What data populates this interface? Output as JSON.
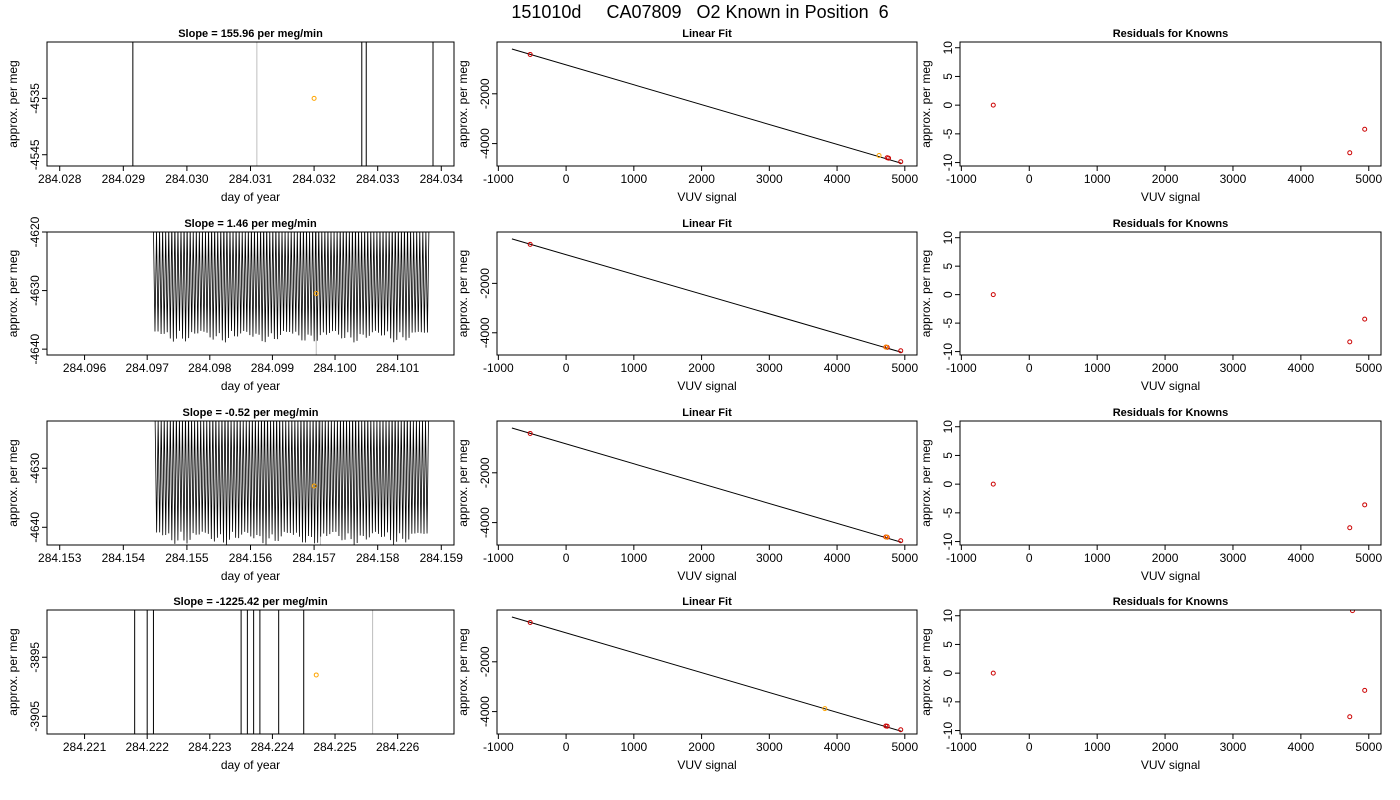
{
  "page_title": "151010d     CA07809   O2 Known in Position  6",
  "colors": {
    "trace": "#000000",
    "gray_marker": "#bebebe",
    "orange_point": "#ffa500",
    "red_point": "#cc0000"
  },
  "chart_data": [
    {
      "type": "line",
      "title": "Slope =  155.96  per meg/min",
      "xlabel": "day of year",
      "ylabel": "approx. per meg",
      "xlim": [
        284.0278,
        284.0342
      ],
      "ylim": [
        -4547,
        -4525
      ],
      "xticks": [
        284.028,
        284.029,
        284.03,
        284.031,
        284.032,
        284.033,
        284.034
      ],
      "xtick_labels": [
        "284.028",
        "284.029",
        "284.030",
        "284.031",
        "284.032",
        "284.033",
        "284.034"
      ],
      "yticks": [
        -4535,
        -4545
      ],
      "ytick_labels": [
        "-4535",
        "-4545"
      ],
      "vertical_lines": [
        284.02915,
        284.03275,
        284.03282,
        284.03387
      ],
      "gray_line": 284.0311,
      "highlight_point": {
        "x": 284.032,
        "y": -4535
      }
    },
    {
      "type": "scatter",
      "title": "Linear Fit",
      "xlabel": "VUV signal",
      "ylabel": "approx. per meg",
      "xlim": [
        -1020,
        5180
      ],
      "ylim": [
        -4900,
        80
      ],
      "xticks": [
        -1000,
        0,
        1000,
        2000,
        3000,
        4000,
        5000
      ],
      "xtick_labels": [
        "-1000",
        "0",
        "1000",
        "2000",
        "3000",
        "4000",
        "5000"
      ],
      "yticks": [
        -2000,
        -4000
      ],
      "ytick_labels": [
        "-2000",
        "-4000"
      ],
      "fit_line": {
        "x": [
          -800,
          4950
        ],
        "y": [
          -200,
          -4790
        ]
      },
      "points": [
        {
          "x": -530,
          "y": -420
        },
        {
          "x": 4740,
          "y": -4570
        },
        {
          "x": 4760,
          "y": -4585
        },
        {
          "x": 4940,
          "y": -4730
        }
      ],
      "highlight_point": {
        "x": 4620,
        "y": -4480
      }
    },
    {
      "type": "scatter",
      "title": "Residuals for Knowns",
      "xlabel": "VUV signal",
      "ylabel": "approx. per meg",
      "xlim": [
        -1020,
        5180
      ],
      "ylim": [
        -10.6,
        11
      ],
      "xticks": [
        -1000,
        0,
        1000,
        2000,
        3000,
        4000,
        5000
      ],
      "xtick_labels": [
        "-1000",
        "0",
        "1000",
        "2000",
        "3000",
        "4000",
        "5000"
      ],
      "yticks": [
        10,
        5,
        0,
        -5,
        -10
      ],
      "ytick_labels": [
        "10",
        "5",
        "0",
        "-5",
        "-10"
      ],
      "points": [
        {
          "x": -530,
          "y": 0
        },
        {
          "x": 4720,
          "y": -8.3
        },
        {
          "x": 4940,
          "y": -4.2
        }
      ]
    },
    {
      "type": "line",
      "title": "Slope =  1.46  per meg/min",
      "xlabel": "day of year",
      "ylabel": "approx. per meg",
      "xlim": [
        284.0954,
        284.1019
      ],
      "ylim": [
        -4641,
        -4620
      ],
      "xticks": [
        284.096,
        284.097,
        284.098,
        284.099,
        284.1,
        284.101
      ],
      "xtick_labels": [
        "284.096",
        "284.097",
        "284.098",
        "284.099",
        "284.100",
        "284.101"
      ],
      "yticks": [
        -4620,
        -4630,
        -4640
      ],
      "ytick_labels": [
        "-4620",
        "-4630",
        "-4640"
      ],
      "oscillation": {
        "x_start": 284.0971,
        "x_end": 284.1015,
        "high": -4620,
        "low": -4638,
        "cycles": 90
      },
      "gray_line": 284.0997,
      "highlight_point": {
        "x": 284.0997,
        "y": -4630.5
      }
    },
    {
      "type": "scatter",
      "title": "Linear Fit",
      "xlabel": "VUV signal",
      "ylabel": "approx. per meg",
      "xlim": [
        -1020,
        5180
      ],
      "ylim": [
        -4900,
        80
      ],
      "xticks": [
        -1000,
        0,
        1000,
        2000,
        3000,
        4000,
        5000
      ],
      "xtick_labels": [
        "-1000",
        "0",
        "1000",
        "2000",
        "3000",
        "4000",
        "5000"
      ],
      "yticks": [
        -2000,
        -4000
      ],
      "ytick_labels": [
        "-2000",
        "-4000"
      ],
      "fit_line": {
        "x": [
          -800,
          4950
        ],
        "y": [
          -200,
          -4790
        ]
      },
      "points": [
        {
          "x": -530,
          "y": -420
        },
        {
          "x": 4720,
          "y": -4580
        },
        {
          "x": 4740,
          "y": -4590
        },
        {
          "x": 4940,
          "y": -4730
        }
      ],
      "highlight_point": {
        "x": 4725,
        "y": -4582
      }
    },
    {
      "type": "scatter",
      "title": "Residuals for Knowns",
      "xlabel": "VUV signal",
      "ylabel": "approx. per meg",
      "xlim": [
        -1020,
        5180
      ],
      "ylim": [
        -10.6,
        11
      ],
      "xticks": [
        -1000,
        0,
        1000,
        2000,
        3000,
        4000,
        5000
      ],
      "xtick_labels": [
        "-1000",
        "0",
        "1000",
        "2000",
        "3000",
        "4000",
        "5000"
      ],
      "yticks": [
        10,
        5,
        0,
        -5,
        -10
      ],
      "ytick_labels": [
        "10",
        "5",
        "0",
        "-5",
        "-10"
      ],
      "points": [
        {
          "x": -530,
          "y": 0
        },
        {
          "x": 4720,
          "y": -8.3
        },
        {
          "x": 4940,
          "y": -4.3
        }
      ]
    },
    {
      "type": "line",
      "title": "Slope =  -0.52  per meg/min",
      "xlabel": "day of year",
      "ylabel": "approx. per meg",
      "xlim": [
        284.1528,
        284.1592
      ],
      "ylim": [
        -4643,
        -4622
      ],
      "xticks": [
        284.153,
        284.154,
        284.155,
        284.156,
        284.157,
        284.158,
        284.159
      ],
      "xtick_labels": [
        "284.153",
        "284.154",
        "284.155",
        "284.156",
        "284.157",
        "284.158",
        "284.159"
      ],
      "yticks": [
        -4630,
        -4640
      ],
      "ytick_labels": [
        "-4630",
        "-4640"
      ],
      "oscillation": {
        "x_start": 284.1545,
        "x_end": 284.1588,
        "high": -4622,
        "low": -4642,
        "cycles": 90
      },
      "gray_line": 284.1571,
      "highlight_point": {
        "x": 284.157,
        "y": -4633
      }
    },
    {
      "type": "scatter",
      "title": "Linear Fit",
      "xlabel": "VUV signal",
      "ylabel": "approx. per meg",
      "xlim": [
        -1020,
        5180
      ],
      "ylim": [
        -4900,
        80
      ],
      "xticks": [
        -1000,
        0,
        1000,
        2000,
        3000,
        4000,
        5000
      ],
      "xtick_labels": [
        "-1000",
        "0",
        "1000",
        "2000",
        "3000",
        "4000",
        "5000"
      ],
      "yticks": [
        -2000,
        -4000
      ],
      "ytick_labels": [
        "-2000",
        "-4000"
      ],
      "fit_line": {
        "x": [
          -800,
          4950
        ],
        "y": [
          -200,
          -4790
        ]
      },
      "points": [
        {
          "x": -530,
          "y": -420
        },
        {
          "x": 4720,
          "y": -4580
        },
        {
          "x": 4740,
          "y": -4590
        },
        {
          "x": 4940,
          "y": -4730
        }
      ],
      "highlight_point": {
        "x": 4730,
        "y": -4585
      }
    },
    {
      "type": "scatter",
      "title": "Residuals for Knowns",
      "xlabel": "VUV signal",
      "ylabel": "approx. per meg",
      "xlim": [
        -1020,
        5180
      ],
      "ylim": [
        -10.6,
        11
      ],
      "xticks": [
        -1000,
        0,
        1000,
        2000,
        3000,
        4000,
        5000
      ],
      "xtick_labels": [
        "-1000",
        "0",
        "1000",
        "2000",
        "3000",
        "4000",
        "5000"
      ],
      "yticks": [
        10,
        5,
        0,
        -5,
        -10
      ],
      "ytick_labels": [
        "10",
        "5",
        "0",
        "-5",
        "-10"
      ],
      "points": [
        {
          "x": -530,
          "y": 0
        },
        {
          "x": 4720,
          "y": -7.6
        },
        {
          "x": 4940,
          "y": -3.6
        }
      ]
    },
    {
      "type": "line",
      "title": "Slope =  -1225.42  per meg/min",
      "xlabel": "day of year",
      "ylabel": "approx. per meg",
      "xlim": [
        284.2204,
        284.2269
      ],
      "ylim": [
        -3908,
        -3887
      ],
      "xticks": [
        284.221,
        284.222,
        284.223,
        284.224,
        284.225,
        284.226
      ],
      "xtick_labels": [
        "284.221",
        "284.222",
        "284.223",
        "284.224",
        "284.225",
        "284.226"
      ],
      "yticks": [
        -3895,
        -3905
      ],
      "ytick_labels": [
        "-3895",
        "-3905"
      ],
      "vertical_lines": [
        284.2218,
        284.222,
        284.2221,
        284.2235,
        284.2236,
        284.2237,
        284.2238,
        284.2241,
        284.2245
      ],
      "gray_line": 284.2256,
      "highlight_point": {
        "x": 284.2247,
        "y": -3898
      }
    },
    {
      "type": "scatter",
      "title": "Linear Fit",
      "xlabel": "VUV signal",
      "ylabel": "approx. per meg",
      "xlim": [
        -1020,
        5180
      ],
      "ylim": [
        -4900,
        80
      ],
      "xticks": [
        -1000,
        0,
        1000,
        2000,
        3000,
        4000,
        5000
      ],
      "xtick_labels": [
        "-1000",
        "0",
        "1000",
        "2000",
        "3000",
        "4000",
        "5000"
      ],
      "yticks": [
        -2000,
        -4000
      ],
      "ytick_labels": [
        "-2000",
        "-4000"
      ],
      "fit_line": {
        "x": [
          -800,
          4950
        ],
        "y": [
          -200,
          -4790
        ]
      },
      "points": [
        {
          "x": -530,
          "y": -420
        },
        {
          "x": 4720,
          "y": -4580
        },
        {
          "x": 4740,
          "y": -4590
        },
        {
          "x": 4940,
          "y": -4730
        }
      ],
      "highlight_point": {
        "x": 3820,
        "y": -3880
      }
    },
    {
      "type": "scatter",
      "title": "Residuals for Knowns",
      "xlabel": "VUV signal",
      "ylabel": "approx. per meg",
      "xlim": [
        -1020,
        5180
      ],
      "ylim": [
        -10.6,
        11
      ],
      "xticks": [
        -1000,
        0,
        1000,
        2000,
        3000,
        4000,
        5000
      ],
      "xtick_labels": [
        "-1000",
        "0",
        "1000",
        "2000",
        "3000",
        "4000",
        "5000"
      ],
      "yticks": [
        10,
        5,
        0,
        -5,
        -10
      ],
      "ytick_labels": [
        "10",
        "5",
        "0",
        "-5",
        "-10"
      ],
      "points": [
        {
          "x": -530,
          "y": 0
        },
        {
          "x": 4720,
          "y": -7.6
        },
        {
          "x": 4760,
          "y": 10.9
        },
        {
          "x": 4940,
          "y": -3.0
        }
      ]
    }
  ]
}
